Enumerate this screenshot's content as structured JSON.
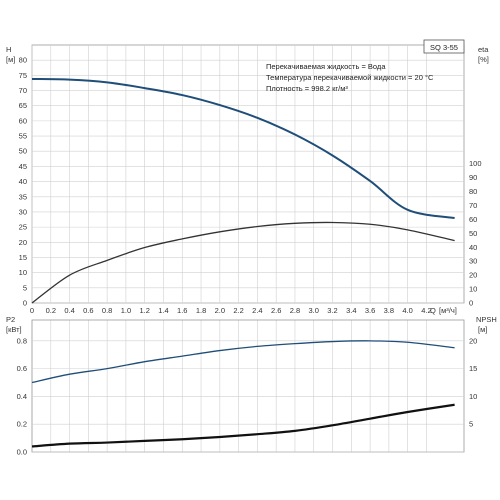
{
  "chart_data": [
    {
      "type": "line",
      "model": "SQ 3-55",
      "info_lines": [
        "Перекачиваемая жидкость = Вода",
        "Температура перекачиваемой жидкости = 20 °C",
        "Плотность = 998.2 кг/м³"
      ],
      "ylabel_left": "H",
      "yunit_left": "[м]",
      "ylabel_right": "eta",
      "yunit_right": "[%]",
      "xlabel": "Q",
      "xunit": "[м³/ч]",
      "xlim": [
        0,
        4.6
      ],
      "ylim_left": [
        0,
        85
      ],
      "ylim_right": [
        0,
        100
      ],
      "grid": true,
      "x_ticks": [
        "0",
        "0.2",
        "0.4",
        "0.6",
        "0.8",
        "1.0",
        "1.2",
        "1.4",
        "1.6",
        "1.8",
        "2.0",
        "2.2",
        "2.4",
        "2.6",
        "2.8",
        "3.0",
        "3.2",
        "3.4",
        "3.6",
        "3.8",
        "4.0",
        "4.2"
      ],
      "y_ticks_left": [
        "0",
        "5",
        "10",
        "15",
        "20",
        "25",
        "30",
        "35",
        "40",
        "45",
        "50",
        "55",
        "60",
        "65",
        "70",
        "75",
        "80"
      ],
      "y_ticks_right": [
        "0",
        "10",
        "20",
        "30",
        "40",
        "50",
        "60",
        "70",
        "80",
        "90",
        "100"
      ],
      "series": [
        {
          "axis": "left",
          "color": "#1f4e79",
          "x": [
            0,
            0.4,
            0.8,
            1.2,
            1.6,
            2.0,
            2.4,
            2.8,
            3.2,
            3.6,
            4.0,
            4.5
          ],
          "y": [
            73.8,
            73.6,
            72.7,
            70.8,
            68.5,
            65.2,
            61.0,
            55.5,
            48.6,
            40.2,
            30.7,
            28.0
          ]
        },
        {
          "axis": "right",
          "color": "#333333",
          "x": [
            0,
            0.4,
            0.8,
            1.2,
            1.6,
            2.0,
            2.4,
            2.8,
            3.2,
            3.6,
            4.0,
            4.5
          ],
          "y": [
            0,
            20.0,
            30.6,
            39.8,
            46.0,
            51.1,
            54.9,
            57.2,
            57.8,
            56.5,
            52.5,
            44.8
          ]
        }
      ]
    },
    {
      "type": "line",
      "ylabel_left": "P2",
      "yunit_left": "[кВт]",
      "ylabel_right": "NPSH",
      "yunit_right": "[м]",
      "xlim": [
        0,
        4.6
      ],
      "ylim_left": [
        0,
        0.95
      ],
      "ylim_right": [
        0,
        23.75
      ],
      "grid": true,
      "y_ticks_left": [
        "0.0",
        "0.2",
        "0.4",
        "0.6",
        "0.8"
      ],
      "y_ticks_right": [
        "5",
        "10",
        "15",
        "20"
      ],
      "series": [
        {
          "axis": "left",
          "color": "#1f4e79",
          "x": [
            0,
            0.4,
            0.8,
            1.2,
            1.6,
            2.0,
            2.4,
            2.8,
            3.2,
            3.6,
            4.0,
            4.5
          ],
          "y": [
            0.5,
            0.56,
            0.6,
            0.65,
            0.69,
            0.73,
            0.76,
            0.78,
            0.795,
            0.8,
            0.79,
            0.75
          ]
        },
        {
          "axis": "right",
          "color": "#111111",
          "x": [
            0,
            0.4,
            0.8,
            1.2,
            1.6,
            2.0,
            2.4,
            2.8,
            3.2,
            3.6,
            4.0,
            4.5
          ],
          "y": [
            1.0,
            1.5,
            1.7,
            2.0,
            2.3,
            2.7,
            3.2,
            3.8,
            4.8,
            6.0,
            7.2,
            8.5
          ]
        }
      ]
    }
  ]
}
